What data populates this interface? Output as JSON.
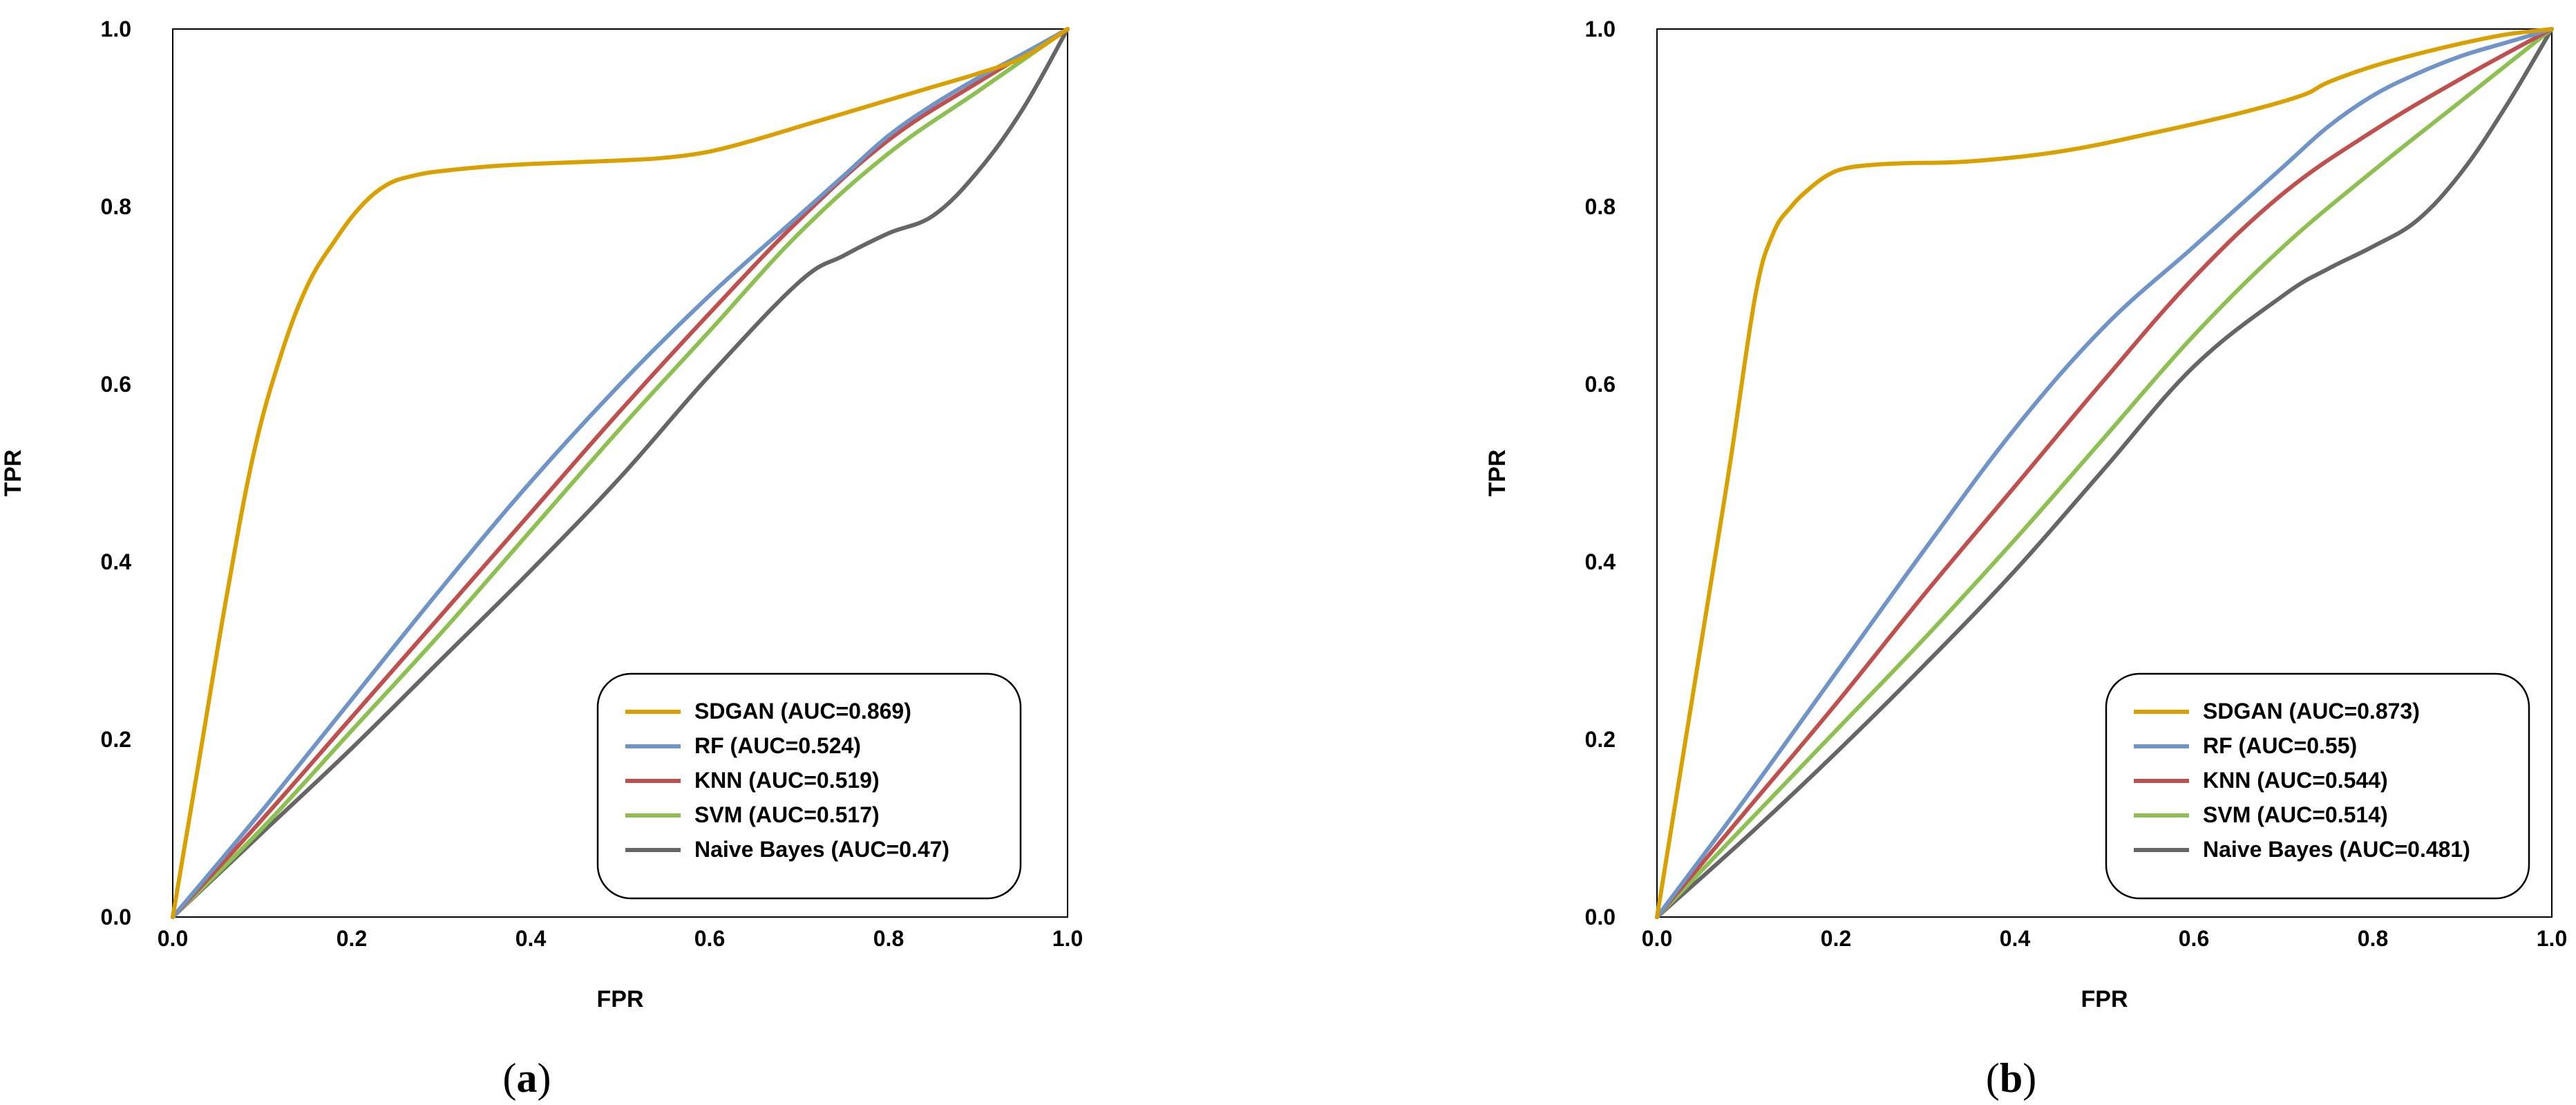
{
  "figure": {
    "panel_labels": [
      "(a)",
      "(b)"
    ]
  },
  "chart_data": [
    {
      "type": "line",
      "panel": "(a)",
      "xlabel": "FPR",
      "ylabel": "TPR",
      "xlim": [
        0,
        1
      ],
      "ylim": [
        0,
        1
      ],
      "x_ticks": [
        "0.0",
        "0.2",
        "0.4",
        "0.6",
        "0.8",
        "1.0"
      ],
      "y_ticks": [
        "0.0",
        "0.2",
        "0.4",
        "0.6",
        "0.8",
        "1.0"
      ],
      "grid": false,
      "legend_position": "bottom-right",
      "series": [
        {
          "name": "SDGAN (AUC=0.869)",
          "color": "#D9A000",
          "x": [
            0,
            0.03,
            0.06,
            0.09,
            0.12,
            0.15,
            0.18,
            0.21,
            0.24,
            0.27,
            0.3,
            0.35,
            0.4,
            0.45,
            0.5,
            0.55,
            0.6,
            0.65,
            0.7,
            0.75,
            0.8,
            0.85,
            0.9,
            0.95,
            1.0
          ],
          "y": [
            0,
            0.18,
            0.36,
            0.52,
            0.63,
            0.71,
            0.76,
            0.8,
            0.825,
            0.835,
            0.84,
            0.845,
            0.848,
            0.85,
            0.852,
            0.855,
            0.862,
            0.875,
            0.89,
            0.905,
            0.92,
            0.935,
            0.95,
            0.968,
            1.0
          ]
        },
        {
          "name": "RF (AUC=0.524)",
          "color": "#6F94C8",
          "x": [
            0,
            0.1,
            0.2,
            0.3,
            0.4,
            0.5,
            0.6,
            0.7,
            0.75,
            0.8,
            0.85,
            0.9,
            0.95,
            1.0
          ],
          "y": [
            0,
            0.12,
            0.245,
            0.37,
            0.49,
            0.6,
            0.7,
            0.79,
            0.835,
            0.88,
            0.915,
            0.945,
            0.972,
            1.0
          ]
        },
        {
          "name": "KNN (AUC=0.519)",
          "color": "#C0504D",
          "x": [
            0,
            0.1,
            0.2,
            0.3,
            0.4,
            0.5,
            0.6,
            0.7,
            0.8,
            0.9,
            1.0
          ],
          "y": [
            0,
            0.11,
            0.225,
            0.34,
            0.455,
            0.57,
            0.68,
            0.785,
            0.875,
            0.94,
            1.0
          ]
        },
        {
          "name": "SVM (AUC=0.517)",
          "color": "#8CC152",
          "x": [
            0,
            0.1,
            0.2,
            0.3,
            0.4,
            0.5,
            0.6,
            0.7,
            0.8,
            0.9,
            1.0
          ],
          "y": [
            0,
            0.1,
            0.21,
            0.32,
            0.435,
            0.55,
            0.66,
            0.77,
            0.86,
            0.93,
            1.0
          ]
        },
        {
          "name": "Naive Bayes (AUC=0.47)",
          "color": "#666666",
          "x": [
            0,
            0.1,
            0.2,
            0.3,
            0.4,
            0.5,
            0.6,
            0.7,
            0.75,
            0.8,
            0.85,
            0.9,
            0.95,
            1.0
          ],
          "y": [
            0,
            0.095,
            0.19,
            0.29,
            0.39,
            0.495,
            0.61,
            0.715,
            0.745,
            0.77,
            0.79,
            0.84,
            0.91,
            1.0
          ]
        }
      ]
    },
    {
      "type": "line",
      "panel": "(b)",
      "xlabel": "FPR",
      "ylabel": "TPR",
      "xlim": [
        0,
        1
      ],
      "ylim": [
        0,
        1
      ],
      "x_ticks": [
        "0.0",
        "0.2",
        "0.4",
        "0.6",
        "0.8",
        "1.0"
      ],
      "y_ticks": [
        "0.0",
        "0.2",
        "0.4",
        "0.6",
        "0.8",
        "1.0"
      ],
      "grid": false,
      "legend_position": "bottom-right",
      "series": [
        {
          "name": "SDGAN (AUC=0.873)",
          "color": "#D9A000",
          "x": [
            0,
            0.04,
            0.08,
            0.11,
            0.13,
            0.15,
            0.17,
            0.19,
            0.21,
            0.24,
            0.28,
            0.35,
            0.45,
            0.55,
            0.65,
            0.72,
            0.75,
            0.8,
            0.85,
            0.9,
            0.95,
            1.0
          ],
          "y": [
            0,
            0.25,
            0.5,
            0.7,
            0.77,
            0.8,
            0.82,
            0.835,
            0.843,
            0.847,
            0.849,
            0.851,
            0.862,
            0.882,
            0.905,
            0.925,
            0.94,
            0.958,
            0.972,
            0.984,
            0.994,
            1.0
          ]
        },
        {
          "name": "RF (AUC=0.55)",
          "color": "#6F94C8",
          "x": [
            0,
            0.1,
            0.2,
            0.3,
            0.4,
            0.5,
            0.6,
            0.7,
            0.75,
            0.8,
            0.85,
            0.9,
            0.95,
            1.0
          ],
          "y": [
            0,
            0.135,
            0.275,
            0.415,
            0.55,
            0.665,
            0.755,
            0.845,
            0.89,
            0.925,
            0.95,
            0.97,
            0.985,
            1.0
          ]
        },
        {
          "name": "KNN (AUC=0.544)",
          "color": "#C0504D",
          "x": [
            0,
            0.1,
            0.2,
            0.3,
            0.4,
            0.5,
            0.6,
            0.7,
            0.8,
            0.9,
            1.0
          ],
          "y": [
            0,
            0.12,
            0.24,
            0.365,
            0.485,
            0.605,
            0.72,
            0.815,
            0.885,
            0.945,
            1.0
          ]
        },
        {
          "name": "SVM (AUC=0.514)",
          "color": "#8CC152",
          "x": [
            0,
            0.1,
            0.2,
            0.3,
            0.4,
            0.5,
            0.6,
            0.7,
            0.8,
            0.9,
            1.0
          ],
          "y": [
            0,
            0.105,
            0.21,
            0.315,
            0.425,
            0.54,
            0.655,
            0.755,
            0.84,
            0.92,
            1.0
          ]
        },
        {
          "name": "Naive Bayes (AUC=0.481)",
          "color": "#666666",
          "x": [
            0,
            0.1,
            0.2,
            0.3,
            0.4,
            0.5,
            0.6,
            0.7,
            0.75,
            0.8,
            0.85,
            0.9,
            0.95,
            1.0
          ],
          "y": [
            0,
            0.09,
            0.185,
            0.285,
            0.39,
            0.505,
            0.62,
            0.7,
            0.73,
            0.755,
            0.785,
            0.84,
            0.915,
            1.0
          ]
        }
      ]
    }
  ]
}
